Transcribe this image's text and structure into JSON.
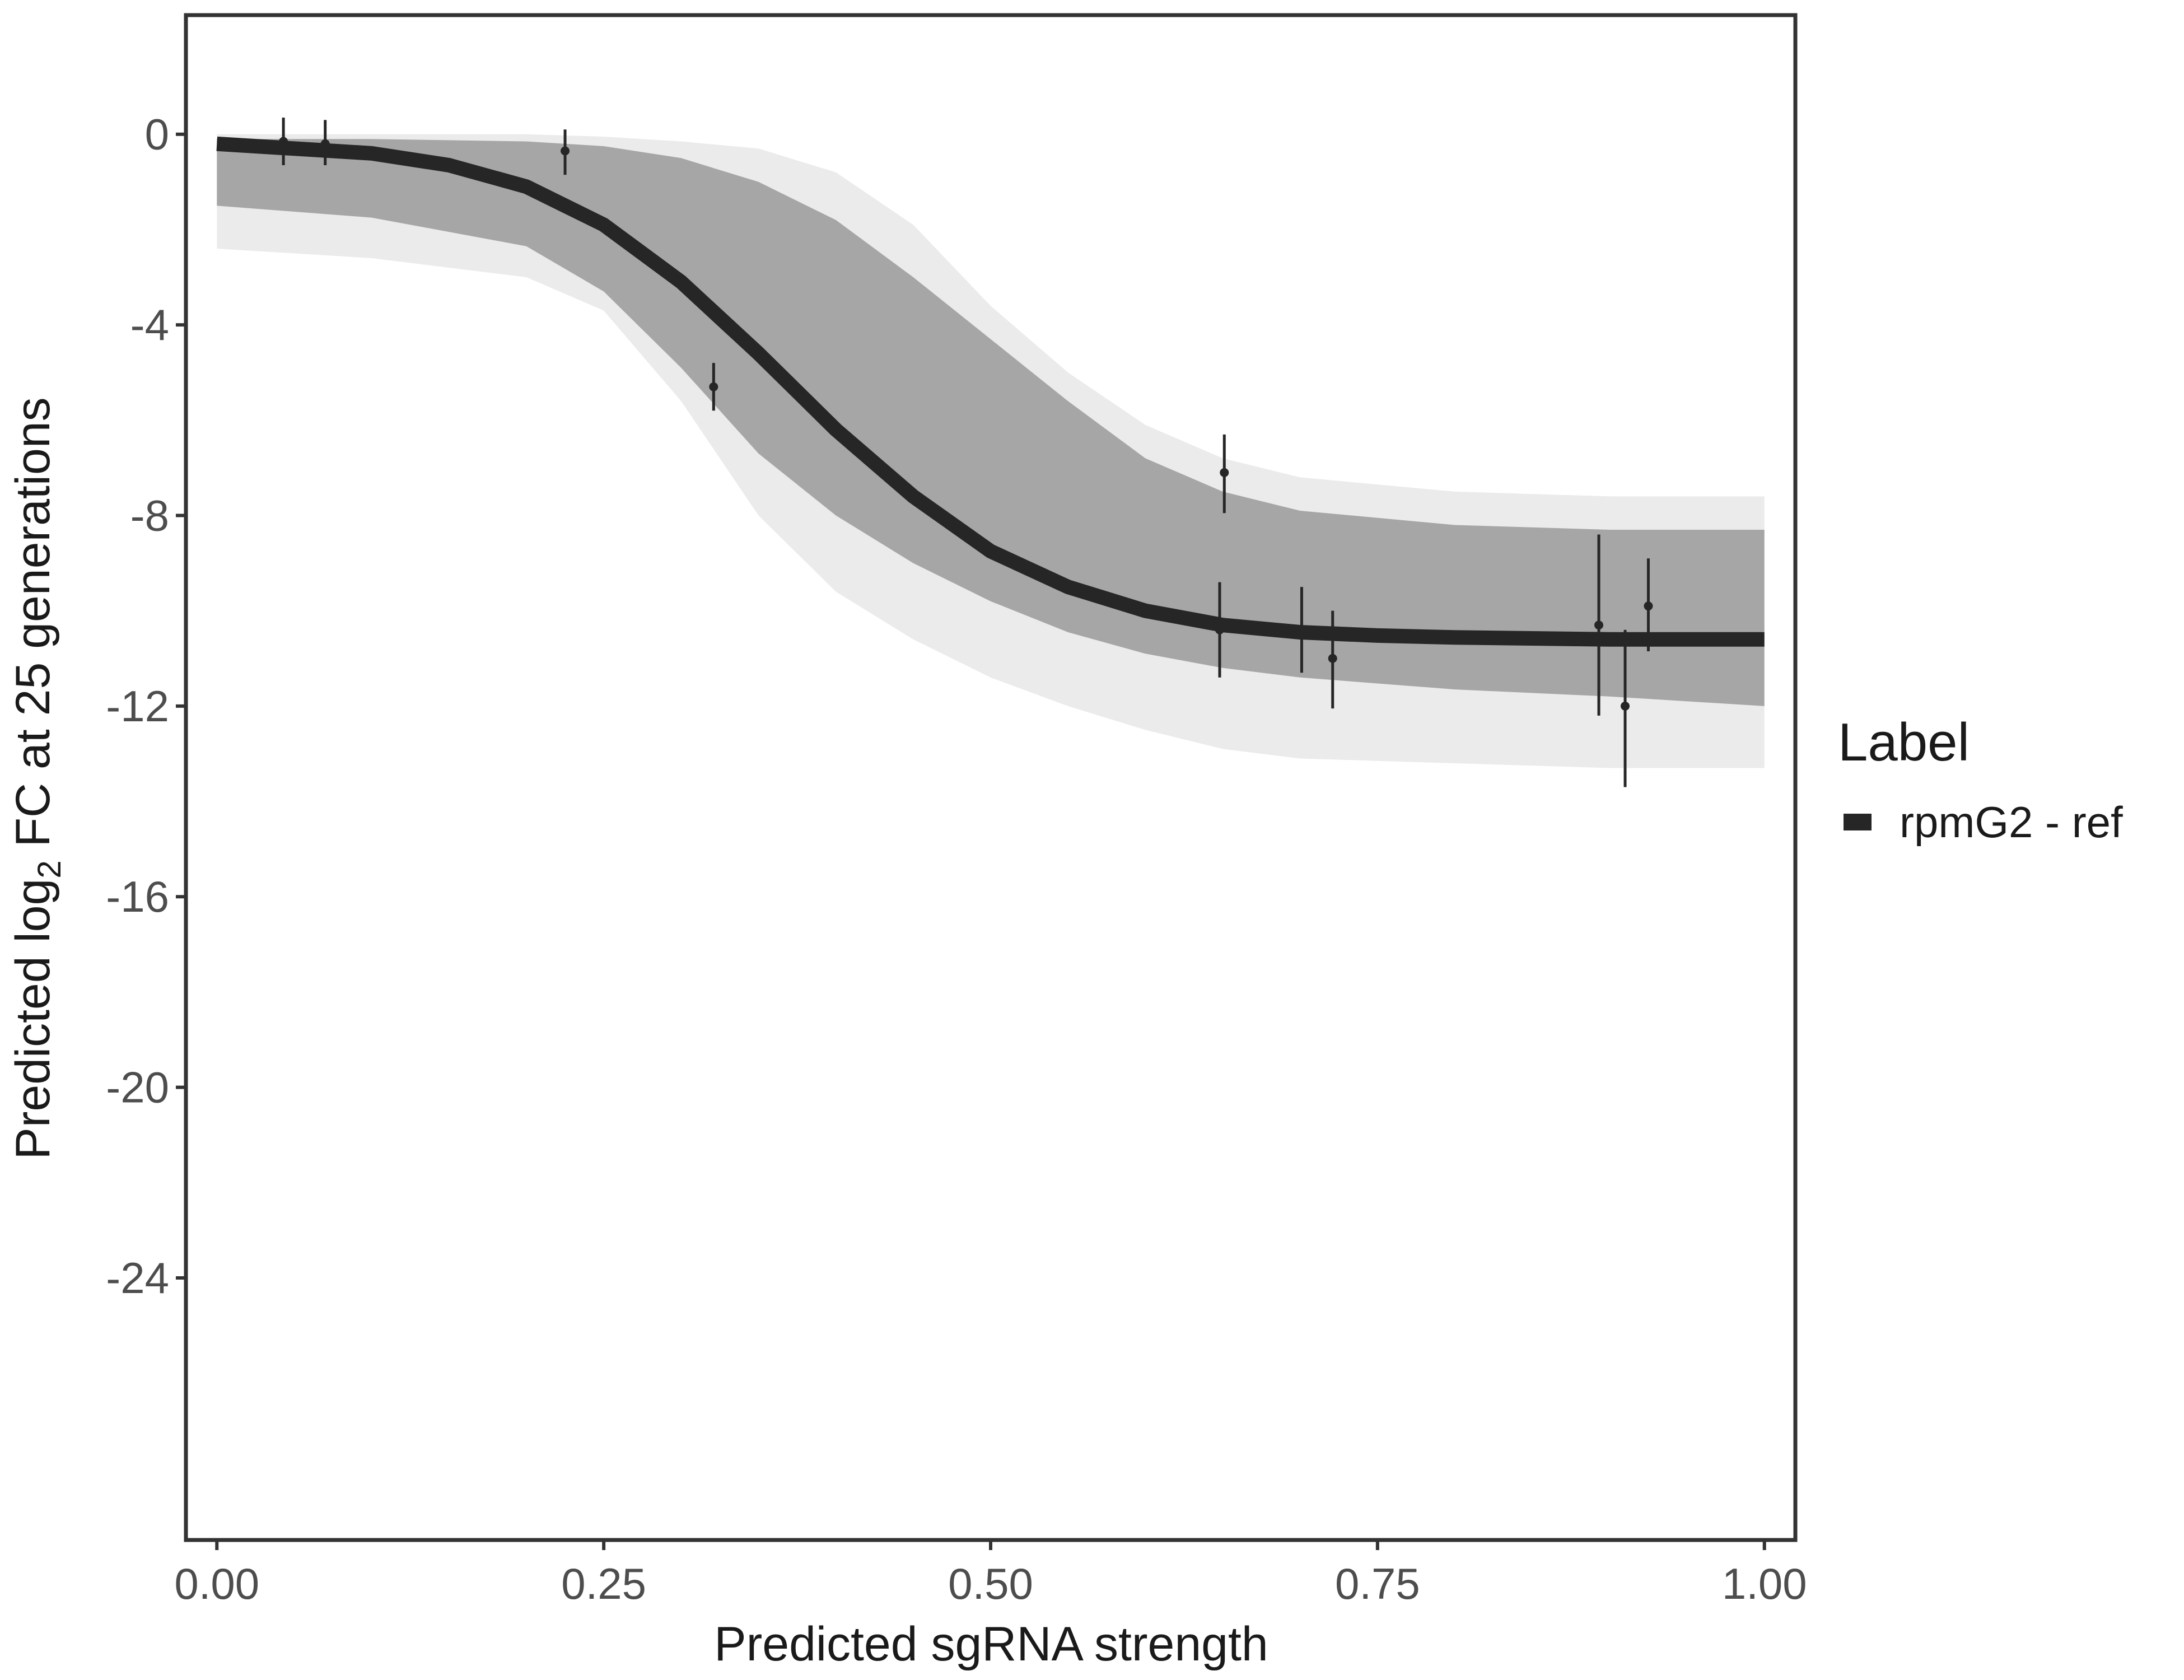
{
  "chart_data": {
    "type": "line",
    "title": "",
    "xlabel": "Predicted sgRNA strength",
    "ylabel": {
      "prefix": "Predicted  log",
      "subscript": "2",
      "suffix": " FC at 25 generations"
    },
    "xlim": [
      -0.02,
      1.02
    ],
    "ylim": [
      -29.5,
      2.5
    ],
    "x_ticks": [
      0,
      0.25,
      0.5,
      0.75,
      1
    ],
    "x_tick_labels": [
      "0.00",
      "0.25",
      "0.50",
      "0.75",
      "1.00"
    ],
    "y_ticks": [
      0,
      -4,
      -8,
      -12,
      -16,
      -20,
      -24
    ],
    "y_tick_labels": [
      "0",
      "-4",
      "-8",
      "-12",
      "-16",
      "-20",
      "-24"
    ],
    "grid": false,
    "legend": {
      "title": "Label",
      "position": "right",
      "entries": [
        {
          "label": "rpmG2 - ref",
          "color": "#262626"
        }
      ]
    },
    "series": [
      {
        "name": "rpmG2 - ref",
        "color": "#262626",
        "x": [
          0,
          0.05,
          0.1,
          0.15,
          0.2,
          0.25,
          0.3,
          0.35,
          0.4,
          0.45,
          0.5,
          0.55,
          0.6,
          0.65,
          0.7,
          0.75,
          0.8,
          0.85,
          0.9,
          0.95,
          1
        ],
        "y": [
          -0.2,
          -0.3,
          -0.4,
          -0.65,
          -1.1,
          -1.9,
          -3.1,
          -4.6,
          -6.2,
          -7.6,
          -8.75,
          -9.5,
          -10.0,
          -10.3,
          -10.45,
          -10.52,
          -10.56,
          -10.58,
          -10.6,
          -10.6,
          -10.6
        ]
      }
    ],
    "posterior_band": {
      "color": "#a6a6a6",
      "x": [
        0,
        0.1,
        0.2,
        0.25,
        0.3,
        0.35,
        0.4,
        0.45,
        0.5,
        0.55,
        0.6,
        0.65,
        0.7,
        0.8,
        0.9,
        1
      ],
      "lower": [
        -1.5,
        -1.75,
        -2.35,
        -3.3,
        -4.9,
        -6.7,
        -8.0,
        -9.0,
        -9.8,
        -10.45,
        -10.9,
        -11.2,
        -11.4,
        -11.65,
        -11.8,
        -12.0
      ],
      "upper": [
        -0.1,
        -0.1,
        -0.15,
        -0.25,
        -0.5,
        -1.0,
        -1.8,
        -3.0,
        -4.3,
        -5.6,
        -6.8,
        -7.5,
        -7.9,
        -8.2,
        -8.3,
        -8.3
      ]
    },
    "posterior_draws_outer": {
      "color": "#ebebeb",
      "x": [
        0,
        0.1,
        0.2,
        0.25,
        0.3,
        0.35,
        0.4,
        0.45,
        0.5,
        0.55,
        0.6,
        0.65,
        0.7,
        0.8,
        0.9,
        1
      ],
      "lower": [
        -2.4,
        -2.6,
        -3.0,
        -3.7,
        -5.6,
        -8.0,
        -9.6,
        -10.6,
        -11.4,
        -12.0,
        -12.5,
        -12.9,
        -13.1,
        -13.2,
        -13.3,
        -13.3
      ],
      "upper": [
        0,
        0,
        0,
        -0.05,
        -0.15,
        -0.3,
        -0.8,
        -1.9,
        -3.6,
        -5.0,
        -6.1,
        -6.8,
        -7.2,
        -7.5,
        -7.6,
        -7.6
      ]
    },
    "points": [
      {
        "x": 0.043,
        "y": -0.15,
        "ymin": -0.65,
        "ymax": 0.35
      },
      {
        "x": 0.07,
        "y": -0.2,
        "ymin": -0.65,
        "ymax": 0.3
      },
      {
        "x": 0.225,
        "y": -0.35,
        "ymin": -0.85,
        "ymax": 0.1
      },
      {
        "x": 0.321,
        "y": -5.3,
        "ymin": -5.8,
        "ymax": -4.8
      },
      {
        "x": 0.648,
        "y": -10.4,
        "ymin": -11.4,
        "ymax": -9.4
      },
      {
        "x": 0.651,
        "y": -7.1,
        "ymin": -7.95,
        "ymax": -6.3
      },
      {
        "x": 0.701,
        "y": -10.4,
        "ymin": -11.3,
        "ymax": -9.5
      },
      {
        "x": 0.721,
        "y": -11.0,
        "ymin": -12.05,
        "ymax": -10.0
      },
      {
        "x": 0.893,
        "y": -10.3,
        "ymin": -12.2,
        "ymax": -8.4
      },
      {
        "x": 0.91,
        "y": -12.0,
        "ymin": -13.7,
        "ymax": -10.4
      },
      {
        "x": 0.925,
        "y": -9.9,
        "ymin": -10.85,
        "ymax": -8.9
      }
    ]
  }
}
